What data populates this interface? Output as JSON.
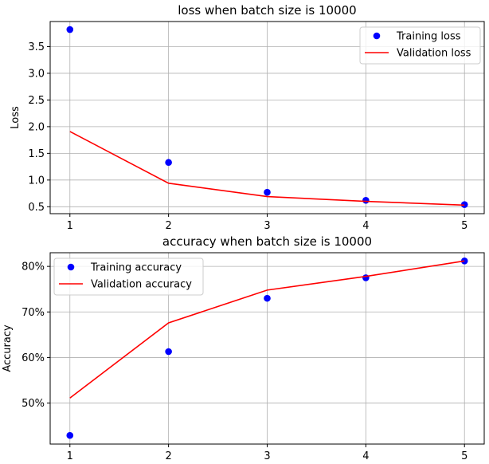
{
  "chart_data": [
    {
      "type": "line",
      "title": "loss when batch size is 10000",
      "xlabel": "",
      "ylabel": "Loss",
      "x": [
        1,
        2,
        3,
        4,
        5
      ],
      "x_ticks": [
        "1",
        "2",
        "3",
        "4",
        "5"
      ],
      "xlim": [
        0.8,
        5.2
      ],
      "ylim": [
        0.37,
        3.97
      ],
      "y_ticks": [
        0.5,
        1.0,
        1.5,
        2.0,
        2.5,
        3.0,
        3.5
      ],
      "y_tick_labels": [
        "0.5",
        "1.0",
        "1.5",
        "2.0",
        "2.5",
        "3.0",
        "3.5"
      ],
      "grid": true,
      "legend_position": "top-right",
      "series": [
        {
          "name": "Training loss",
          "style": "markers",
          "color": "#0000ff",
          "values": [
            3.82,
            1.33,
            0.77,
            0.62,
            0.54
          ]
        },
        {
          "name": "Validation loss",
          "style": "line",
          "color": "#ff0000",
          "values": [
            1.91,
            0.94,
            0.69,
            0.6,
            0.53
          ]
        }
      ]
    },
    {
      "type": "line",
      "title": "accuracy when batch size is 10000",
      "xlabel": "",
      "ylabel": "Accuracy",
      "x": [
        1,
        2,
        3,
        4,
        5
      ],
      "x_ticks": [
        "1",
        "2",
        "3",
        "4",
        "5"
      ],
      "xlim": [
        0.8,
        5.2
      ],
      "ylim": [
        0.41,
        0.83
      ],
      "y_ticks": [
        0.5,
        0.6,
        0.7,
        0.8
      ],
      "y_tick_labels": [
        "50%",
        "60%",
        "70%",
        "80%"
      ],
      "grid": true,
      "legend_position": "top-left",
      "series": [
        {
          "name": "Training accuracy",
          "style": "markers",
          "color": "#0000ff",
          "values": [
            0.429,
            0.613,
            0.73,
            0.775,
            0.812
          ]
        },
        {
          "name": "Validation accuracy",
          "style": "line",
          "color": "#ff0000",
          "values": [
            0.511,
            0.676,
            0.748,
            0.778,
            0.812
          ]
        }
      ]
    }
  ]
}
